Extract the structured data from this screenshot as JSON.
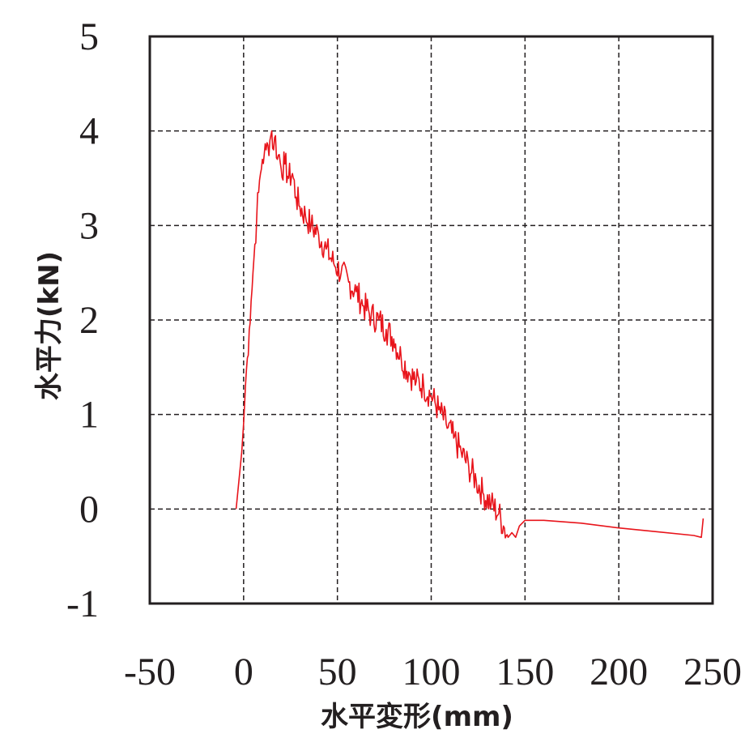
{
  "chart_data": {
    "type": "line",
    "xlabel": "水平変形(mm)",
    "ylabel": "水平力(kN)",
    "xlim": [
      -50,
      250
    ],
    "ylim": [
      -1,
      5
    ],
    "xticks": [
      "-50",
      "0",
      "50",
      "100",
      "150",
      "200",
      "250"
    ],
    "yticks": [
      "-1",
      "0",
      "1",
      "2",
      "3",
      "4",
      "5"
    ],
    "grid": true,
    "grid_style": "dashed",
    "line_color": "#e8141b",
    "series": [
      {
        "x": [
          -4,
          -3,
          -2,
          -1,
          0,
          1,
          2,
          3,
          4,
          5,
          6,
          7,
          8,
          9,
          10,
          11,
          12,
          13,
          14,
          15,
          16,
          17,
          18,
          19,
          20,
          22,
          24,
          26,
          28,
          30,
          33,
          36,
          40,
          44,
          48,
          52,
          56,
          60,
          64,
          68,
          72,
          76,
          80,
          84,
          88,
          92,
          96,
          100,
          104,
          108,
          112,
          116,
          120,
          124,
          128,
          132,
          136,
          139,
          141,
          143,
          145,
          147,
          150,
          160,
          180,
          200,
          220,
          240,
          244,
          245
        ],
        "y": [
          0.0,
          0.2,
          0.4,
          0.6,
          0.9,
          1.3,
          1.6,
          1.9,
          2.2,
          2.5,
          2.8,
          3.1,
          3.35,
          3.55,
          3.7,
          3.75,
          3.8,
          3.85,
          3.9,
          4.0,
          3.8,
          3.95,
          3.7,
          3.75,
          3.6,
          3.65,
          3.5,
          3.55,
          3.3,
          3.2,
          3.1,
          3.0,
          2.9,
          2.75,
          2.6,
          2.5,
          2.4,
          2.3,
          2.15,
          2.05,
          2.0,
          1.9,
          1.8,
          1.6,
          1.45,
          1.35,
          1.3,
          1.2,
          1.05,
          0.9,
          0.75,
          0.6,
          0.45,
          0.3,
          0.15,
          0.05,
          -0.05,
          -0.2,
          -0.3,
          -0.25,
          -0.3,
          -0.18,
          -0.12,
          -0.12,
          -0.15,
          -0.2,
          -0.24,
          -0.28,
          -0.3,
          -0.1
        ]
      }
    ]
  }
}
